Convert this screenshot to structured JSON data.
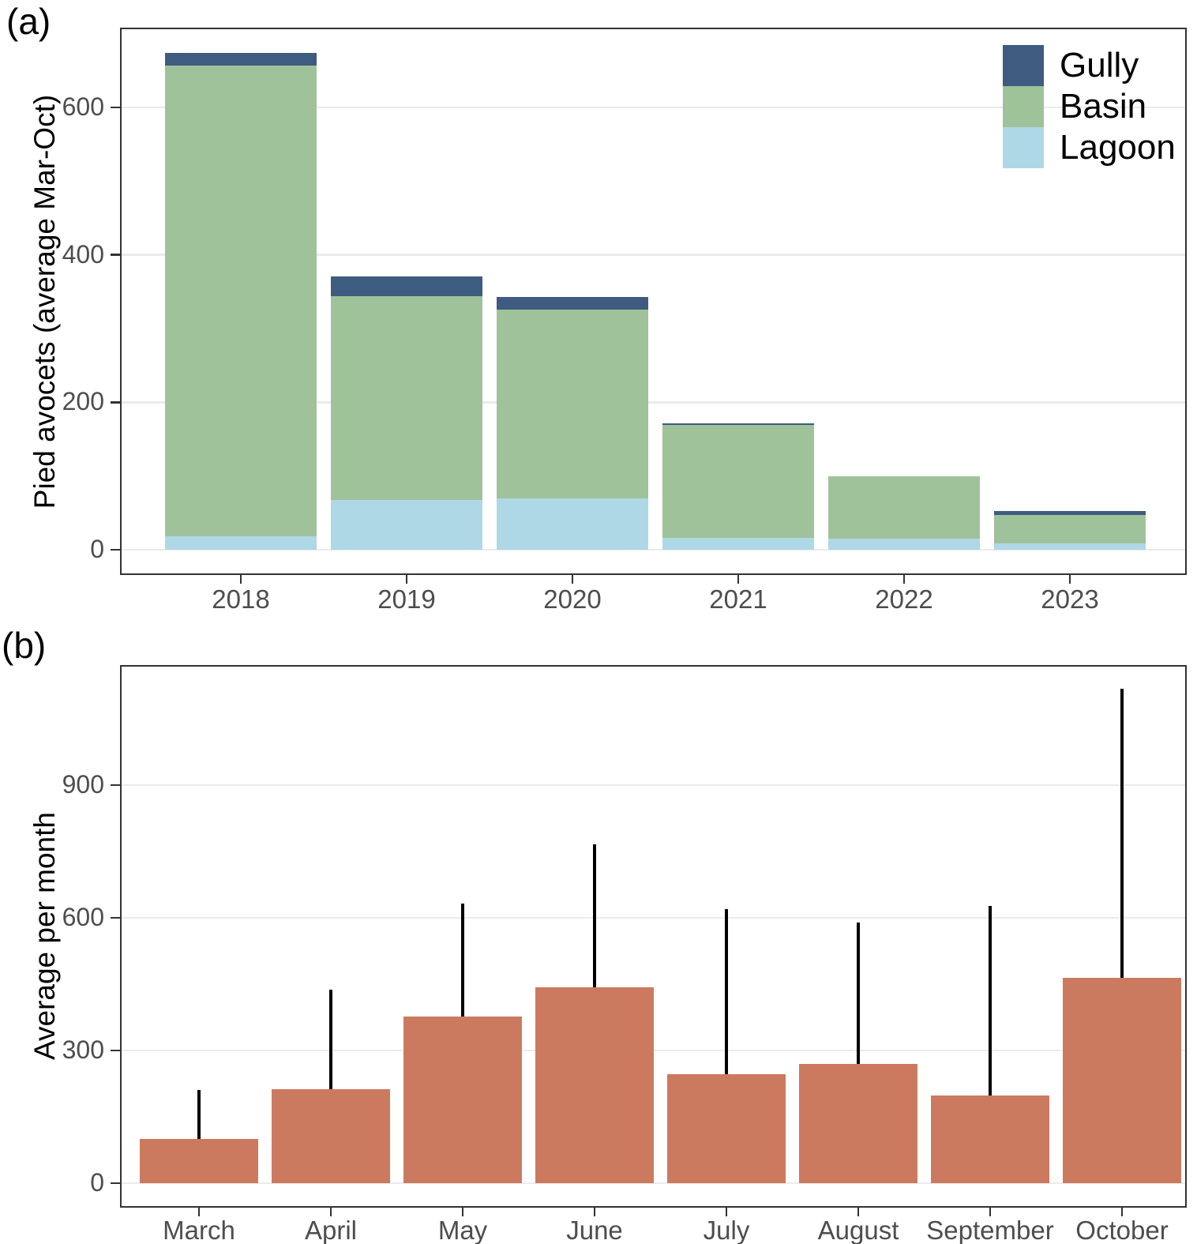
{
  "figure": {
    "panel_a_label": "(a)",
    "panel_b_label": "(b)",
    "colors": {
      "gully": "#3e5b80",
      "basin": "#a0c29a",
      "lagoon": "#aed8e5",
      "month_bar": "#cc7a5f",
      "error_bar": "#000000",
      "grid": "#ebebeb",
      "panel_border": "#333333",
      "tick_text": "#4d4d4d"
    }
  },
  "chart_data": [
    {
      "type": "bar",
      "stacked": true,
      "ylabel": "Pied avocets (average Mar-Oct)",
      "xlabel": "",
      "categories": [
        "2018",
        "2019",
        "2020",
        "2021",
        "2022",
        "2023"
      ],
      "series": [
        {
          "name": "Lagoon",
          "values": [
            18,
            67,
            70,
            16,
            15,
            9
          ]
        },
        {
          "name": "Basin",
          "values": [
            639,
            277,
            256,
            153,
            85,
            38
          ]
        },
        {
          "name": "Gully",
          "values": [
            17,
            27,
            17,
            2,
            0,
            6
          ]
        }
      ],
      "totals": [
        674,
        371,
        343,
        171,
        100,
        53
      ],
      "yticks": [
        0,
        200,
        400,
        600
      ],
      "ylim": [
        0,
        708
      ],
      "grid": "major-horizontal",
      "legend": [
        "Gully",
        "Basin",
        "Lagoon"
      ],
      "legend_position": "top-right-inside"
    },
    {
      "type": "bar",
      "ylabel": "Average per month",
      "xlabel": "",
      "categories": [
        "March",
        "April",
        "May",
        "June",
        "July",
        "August",
        "September",
        "October"
      ],
      "values": [
        100,
        212,
        377,
        443,
        247,
        270,
        198,
        464
      ],
      "error_upper": [
        211,
        438,
        632,
        766,
        620,
        589,
        627,
        1118
      ],
      "yticks": [
        0,
        300,
        600,
        900
      ],
      "ylim": [
        0,
        1171
      ],
      "grid": "major-horizontal",
      "legend_position": "none"
    }
  ]
}
